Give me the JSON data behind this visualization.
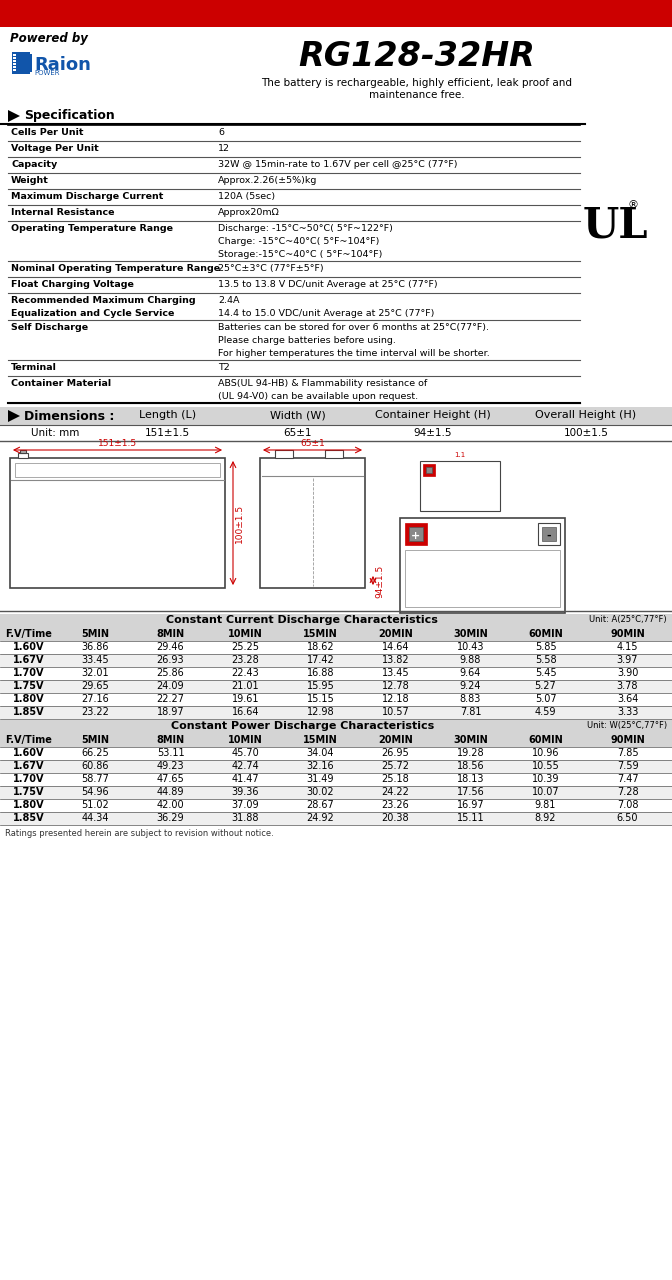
{
  "title": "RG128-32HR",
  "powered_by": "Powered by",
  "description_line1": "The battery is rechargeable, highly efficient, leak proof and",
  "description_line2": "maintenance free.",
  "section_spec": "Specification",
  "red_bar_color": "#cc0000",
  "light_gray": "#d4d4d4",
  "mid_gray": "#bbbbbb",
  "alt_row_bg": "#efefef",
  "white": "#ffffff",
  "black": "#000000",
  "dark_gray_line": "#555555",
  "blue": "#1155aa",
  "red": "#cc0000",
  "spec_rows": [
    {
      "label": "Cells Per Unit",
      "value": "6",
      "label2": "",
      "value2": ""
    },
    {
      "label": "Voltage Per Unit",
      "value": "12",
      "label2": "",
      "value2": ""
    },
    {
      "label": "Capacity",
      "value": "32W @ 15min-rate to 1.67V per cell @25°C (77°F)",
      "label2": "",
      "value2": ""
    },
    {
      "label": "Weight",
      "value": "Approx.2.26(±5%)kg",
      "label2": "",
      "value2": ""
    },
    {
      "label": "Maximum Discharge Current",
      "value": "120A (5sec)",
      "label2": "",
      "value2": ""
    },
    {
      "label": "Internal Resistance",
      "value": "Approx20mΩ",
      "label2": "",
      "value2": ""
    },
    {
      "label": "Operating Temperature Range",
      "value": "Discharge: -15°C~50°C( 5°F~122°F)",
      "label2": "",
      "value2": "Charge: -15°C~40°C( 5°F~104°F)",
      "value3": "Storage:-15°C~40°C ( 5°F~104°F)"
    },
    {
      "label": "Nominal Operating Temperature Range",
      "value": "25°C±3°C (77°F±5°F)",
      "label2": "",
      "value2": ""
    },
    {
      "label": "Float Charging Voltage",
      "value": "13.5 to 13.8 V DC/unit Average at 25°C (77°F)",
      "label2": "",
      "value2": ""
    },
    {
      "label": "Recommended Maximum Charging",
      "value": "2.4A",
      "label2": "Equalization and Cycle Service",
      "value2": "14.4 to 15.0 VDC/unit Average at 25°C (77°F)"
    },
    {
      "label": "Self Discharge",
      "value": "Batteries can be stored for over 6 months at 25°C(77°F).",
      "label2": "",
      "value2": "Please charge batteries before using.",
      "value3": "For higher temperatures the time interval will be shorter."
    },
    {
      "label": "Terminal",
      "value": "T2",
      "label2": "",
      "value2": ""
    },
    {
      "label": "Container Material",
      "value": "ABS(UL 94-HB) & Flammability resistance of",
      "label2": "",
      "value2": "(UL 94-V0) can be available upon request."
    }
  ],
  "dim_headers": [
    "Length (L)",
    "Width (W)",
    "Container Height (H)",
    "Overall Height (H)"
  ],
  "dim_values": [
    "151±1.5",
    "65±1",
    "94±1.5",
    "100±1.5"
  ],
  "cc_header": "Constant Current Discharge Characteristics",
  "cc_unit": "Unit: A(25°C,77°F)",
  "cp_header": "Constant Power Discharge Characteristics",
  "cp_unit": "Unit: W(25°C,77°F)",
  "table_col_headers": [
    "F.V/Time",
    "5MIN",
    "8MIN",
    "10MIN",
    "15MIN",
    "20MIN",
    "30MIN",
    "60MIN",
    "90MIN"
  ],
  "cc_data": [
    [
      "1.60V",
      "36.86",
      "29.46",
      "25.25",
      "18.62",
      "14.64",
      "10.43",
      "5.85",
      "4.15"
    ],
    [
      "1.67V",
      "33.45",
      "26.93",
      "23.28",
      "17.42",
      "13.82",
      "9.88",
      "5.58",
      "3.97"
    ],
    [
      "1.70V",
      "32.01",
      "25.86",
      "22.43",
      "16.88",
      "13.45",
      "9.64",
      "5.45",
      "3.90"
    ],
    [
      "1.75V",
      "29.65",
      "24.09",
      "21.01",
      "15.95",
      "12.78",
      "9.24",
      "5.27",
      "3.78"
    ],
    [
      "1.80V",
      "27.16",
      "22.27",
      "19.61",
      "15.15",
      "12.18",
      "8.83",
      "5.07",
      "3.64"
    ],
    [
      "1.85V",
      "23.22",
      "18.97",
      "16.64",
      "12.98",
      "10.57",
      "7.81",
      "4.59",
      "3.33"
    ]
  ],
  "cp_data": [
    [
      "1.60V",
      "66.25",
      "53.11",
      "45.70",
      "34.04",
      "26.95",
      "19.28",
      "10.96",
      "7.85"
    ],
    [
      "1.67V",
      "60.86",
      "49.23",
      "42.74",
      "32.16",
      "25.72",
      "18.56",
      "10.55",
      "7.59"
    ],
    [
      "1.70V",
      "58.77",
      "47.65",
      "41.47",
      "31.49",
      "25.18",
      "18.13",
      "10.39",
      "7.47"
    ],
    [
      "1.75V",
      "54.96",
      "44.89",
      "39.36",
      "30.02",
      "24.22",
      "17.56",
      "10.07",
      "7.28"
    ],
    [
      "1.80V",
      "51.02",
      "42.00",
      "37.09",
      "28.67",
      "23.26",
      "16.97",
      "9.81",
      "7.08"
    ],
    [
      "1.85V",
      "44.34",
      "36.29",
      "31.88",
      "24.92",
      "20.38",
      "15.11",
      "8.92",
      "6.50"
    ]
  ],
  "footer": "Ratings presented herein are subject to revision without notice."
}
